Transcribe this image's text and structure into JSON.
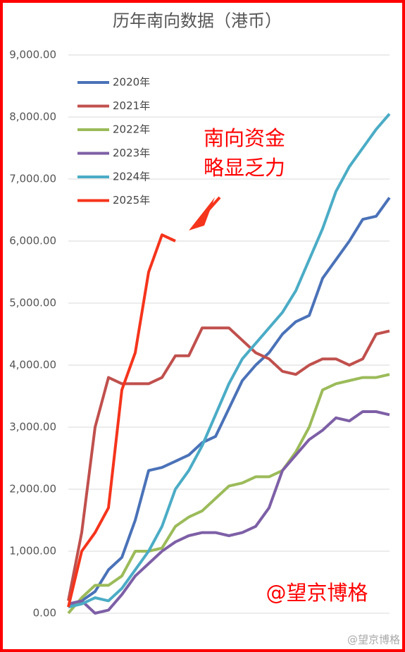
{
  "chart_data": {
    "type": "line",
    "title": "历年南向数据（港币）",
    "annotations": [
      "南向资金",
      "略显乏力",
      "@望京博格",
      "@望京博格"
    ],
    "ylim": [
      0,
      9000
    ],
    "yticks": [
      {
        "value": 0,
        "label": "0.00"
      },
      {
        "value": 1000,
        "label": "1,000.00"
      },
      {
        "value": 2000,
        "label": "2,000.00"
      },
      {
        "value": 3000,
        "label": "3,000.00"
      },
      {
        "value": 4000,
        "label": "4,000.00"
      },
      {
        "value": 5000,
        "label": "5,000.00"
      },
      {
        "value": 6000,
        "label": "6,000.00"
      },
      {
        "value": 7000,
        "label": "7,000.00"
      },
      {
        "value": 8000,
        "label": "8,000.00"
      },
      {
        "value": 9000,
        "label": "9,000.00"
      }
    ],
    "grid": true,
    "legend": "upper left",
    "series": [
      {
        "name": "2020年",
        "color": "#4a72b8",
        "values": [
          100,
          200,
          350,
          700,
          900,
          1500,
          2300,
          2350,
          2450,
          2550,
          2750,
          2850,
          3300,
          3750,
          4000,
          4200,
          4500,
          4700,
          4800,
          5400,
          5700,
          6000,
          6350,
          6400,
          6700
        ]
      },
      {
        "name": "2021年",
        "color": "#c0504d",
        "values": [
          200,
          1300,
          3000,
          3800,
          3700,
          3700,
          3700,
          3800,
          4150,
          4150,
          4600,
          4600,
          4600,
          4400,
          4200,
          4100,
          3900,
          3850,
          4000,
          4100,
          4100,
          4000,
          4100,
          4500,
          4550
        ]
      },
      {
        "name": "2022年",
        "color": "#9bbb59",
        "values": [
          0,
          250,
          450,
          450,
          600,
          1000,
          1000,
          1050,
          1400,
          1550,
          1650,
          1850,
          2050,
          2100,
          2200,
          2200,
          2300,
          2600,
          3000,
          3600,
          3700,
          3750,
          3800,
          3800,
          3850
        ]
      },
      {
        "name": "2023年",
        "color": "#7d5fa6",
        "values": [
          150,
          200,
          0,
          50,
          300,
          600,
          800,
          1000,
          1150,
          1250,
          1300,
          1300,
          1250,
          1300,
          1400,
          1700,
          2300,
          2550,
          2800,
          2950,
          3150,
          3100,
          3250,
          3250,
          3200
        ]
      },
      {
        "name": "2024年",
        "color": "#4bacc6",
        "values": [
          100,
          150,
          250,
          200,
          400,
          700,
          1000,
          1400,
          2000,
          2300,
          2700,
          3200,
          3700,
          4100,
          4350,
          4600,
          4850,
          5200,
          5700,
          6200,
          6800,
          7200,
          7500,
          7800,
          8050
        ]
      },
      {
        "name": "2025年",
        "color": "#f5341c",
        "values": [
          100,
          1000,
          1300,
          1700,
          3600,
          4200,
          5500,
          6100,
          6000,
          null,
          null,
          null,
          null,
          null,
          null,
          null,
          null,
          null,
          null,
          null,
          null,
          null,
          null,
          null,
          null
        ]
      }
    ]
  }
}
